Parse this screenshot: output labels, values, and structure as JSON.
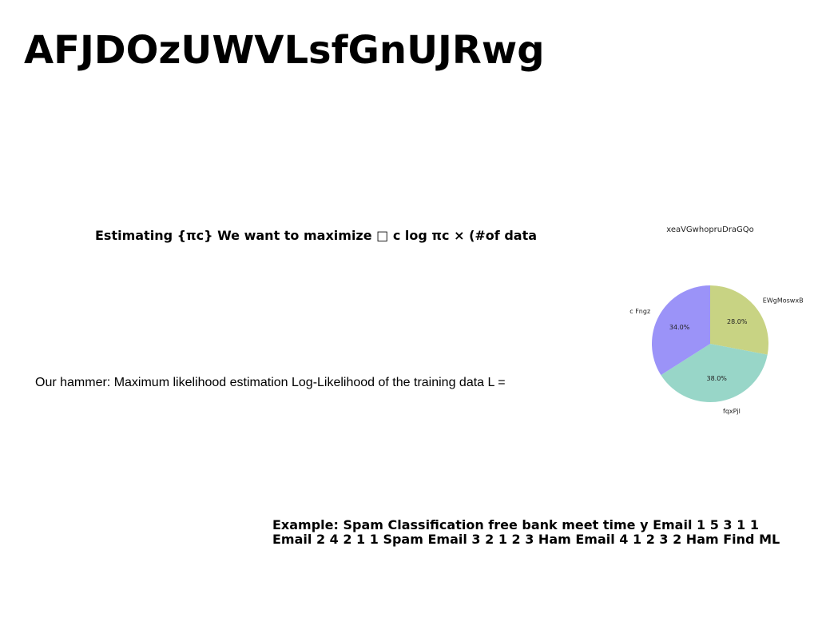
{
  "slide": {
    "title": "AFJDOzUWVLsfGnUJRwg",
    "estimating_text": "Estimating {πc} We want to maximize □ c log πc × (#of data",
    "hammer_text": "Our hammer: Maximum likelihood estimation Log-Likelihood of the training data L =",
    "example_text": "Example: Spam Classification free bank meet time y Email 1 5 3 1 1 Email 2 4 2 1 1 Spam Email 3 2 1 2 3 Ham Email 4 1 2 3 2 Ham Find ML"
  },
  "chart_data": {
    "type": "pie",
    "title": "xeaVGwhopruDraGQo",
    "slices": [
      {
        "label": "EWgMoswxB",
        "value": 28.0,
        "pct_label": "28.0%",
        "color": "#c8d383"
      },
      {
        "label": "fqxPjl",
        "value": 38.0,
        "pct_label": "38.0%",
        "color": "#98d6c8"
      },
      {
        "label": "c Fngz",
        "value": 34.0,
        "pct_label": "34.0%",
        "color": "#9b93f8"
      }
    ],
    "start_angle": "top, clockwise"
  }
}
